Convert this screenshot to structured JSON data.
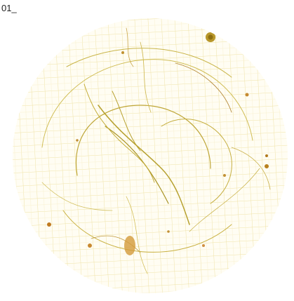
{
  "label": "01_"
}
